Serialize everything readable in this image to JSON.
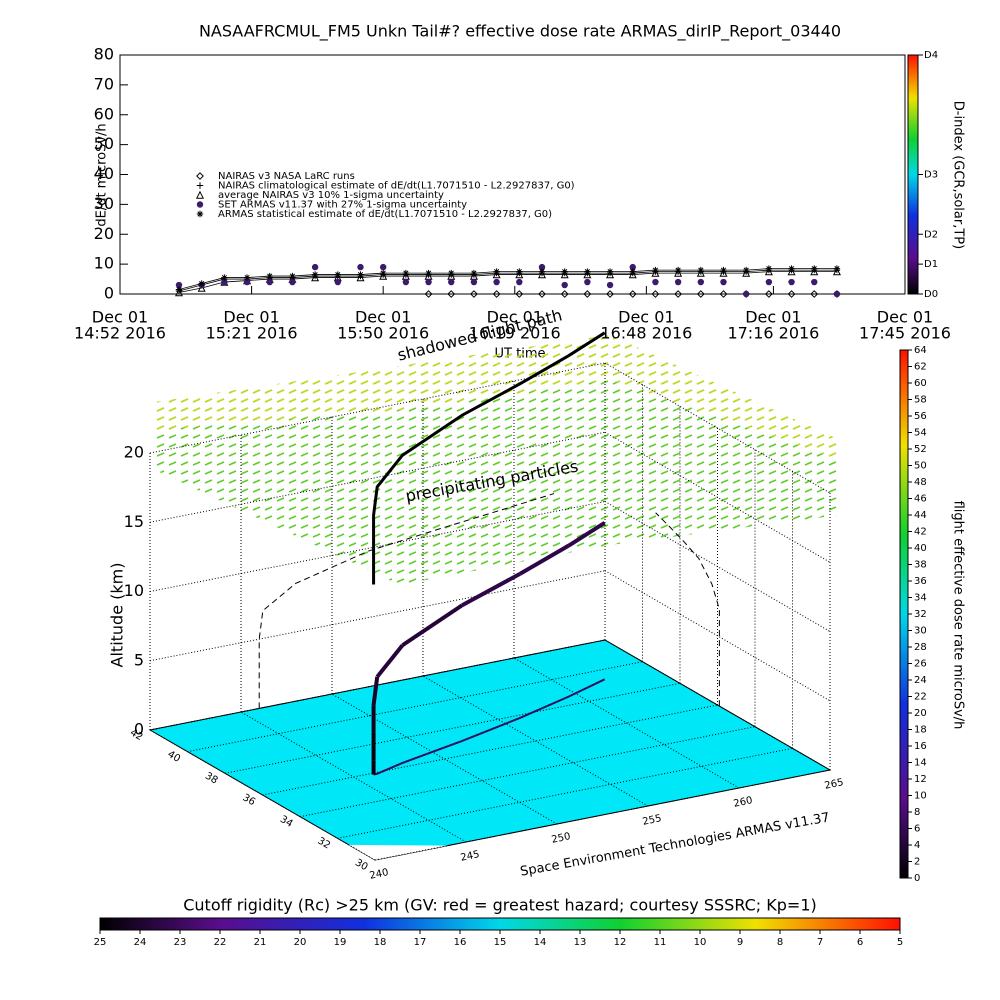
{
  "chart_data": [
    {
      "type": "timeseries",
      "title": "NASAAFRCMUL_FM5 Unkn Tail#? effective dose rate ARMAS_dirIP_Report_03440",
      "ylabel": "dE/dt microSv/h",
      "xlabel": "UT time",
      "xlim": [
        "2016-12-01T14:52",
        "2016-12-01T17:45"
      ],
      "xticks": [
        {
          "value": "2016-12-01T14:52",
          "label": [
            "Dec 01",
            "14:52 2016"
          ]
        },
        {
          "value": "2016-12-01T15:21",
          "label": [
            "Dec 01",
            "15:21 2016"
          ]
        },
        {
          "value": "2016-12-01T15:50",
          "label": [
            "Dec 01",
            "15:50 2016"
          ]
        },
        {
          "value": "2016-12-01T16:19",
          "label": [
            "Dec 01",
            "16:19 2016"
          ]
        },
        {
          "value": "2016-12-01T16:48",
          "label": [
            "Dec 01",
            "16:48 2016"
          ]
        },
        {
          "value": "2016-12-01T17:16",
          "label": [
            "Dec 01",
            "17:16 2016"
          ]
        },
        {
          "value": "2016-12-01T17:45",
          "label": [
            "Dec 01",
            "17:45 2016"
          ]
        }
      ],
      "ylim": [
        0,
        80
      ],
      "yticks": [
        0,
        10,
        20,
        30,
        40,
        50,
        60,
        70,
        80
      ],
      "x": [
        "2016-12-01T15:05",
        "2016-12-01T15:10",
        "2016-12-01T15:15",
        "2016-12-01T15:20",
        "2016-12-01T15:25",
        "2016-12-01T15:30",
        "2016-12-01T15:35",
        "2016-12-01T15:40",
        "2016-12-01T15:45",
        "2016-12-01T15:50",
        "2016-12-01T15:55",
        "2016-12-01T16:00",
        "2016-12-01T16:05",
        "2016-12-01T16:10",
        "2016-12-01T16:15",
        "2016-12-01T16:20",
        "2016-12-01T16:25",
        "2016-12-01T16:30",
        "2016-12-01T16:35",
        "2016-12-01T16:40",
        "2016-12-01T16:45",
        "2016-12-01T16:50",
        "2016-12-01T16:55",
        "2016-12-01T17:00",
        "2016-12-01T17:05",
        "2016-12-01T17:10",
        "2016-12-01T17:15",
        "2016-12-01T17:20",
        "2016-12-01T17:25",
        "2016-12-01T17:30"
      ],
      "series": [
        {
          "name": "NAIRAS v3 NASA LaRC runs",
          "marker": "diamond",
          "color": "#000000",
          "values": [
            null,
            null,
            null,
            null,
            null,
            null,
            null,
            null,
            null,
            null,
            null,
            0,
            0,
            0,
            0,
            0,
            0,
            0,
            0,
            0,
            0,
            0,
            0,
            0,
            0,
            0,
            0,
            0,
            0,
            0
          ]
        },
        {
          "name": "NAIRAS climatological estimate of dE/dt(L1.7071510 - L2.2927837, G0)",
          "marker": "plus",
          "color": "#000000",
          "values": [
            1,
            3,
            5,
            5,
            5.5,
            5.5,
            6,
            6,
            6,
            6.5,
            6.5,
            6.5,
            6.5,
            6.5,
            7,
            7,
            7,
            7,
            7,
            7,
            7,
            7.5,
            7.5,
            7.5,
            7.5,
            7.5,
            8,
            8,
            8,
            8
          ]
        },
        {
          "name": "average NAIRAS v3 10% 1-sigma uncertainty",
          "marker": "triangle",
          "color": "#000000",
          "values": [
            0.5,
            2,
            4,
            4.5,
            5,
            5,
            5.5,
            5.5,
            5.5,
            6,
            6,
            6,
            6,
            6,
            6.5,
            6.5,
            6.5,
            6.5,
            6.5,
            6.5,
            6.5,
            7,
            7,
            7,
            7,
            7,
            7.5,
            7.5,
            7.5,
            7.5
          ]
        },
        {
          "name": "SET ARMAS v11.37 with 27% 1-sigma uncertainty",
          "marker": "circle",
          "color": "#3c1a6e",
          "values": [
            3,
            3,
            4,
            4,
            4,
            4,
            9,
            4,
            9,
            9,
            4,
            4,
            4,
            4,
            4,
            4,
            9,
            3,
            4,
            3,
            9,
            4,
            4,
            4,
            4,
            0,
            4,
            4,
            4,
            0
          ]
        },
        {
          "name": "ARMAS statistical estimate of dE/dt(L1.7071510 - L2.2927837, G0)",
          "marker": "star",
          "color": "#000000",
          "values": [
            1.5,
            3.5,
            5.5,
            5.5,
            6,
            6,
            6.5,
            6.5,
            6.5,
            7,
            7,
            7,
            7,
            7,
            7.5,
            7.5,
            7.5,
            7.5,
            7.5,
            7.5,
            7.5,
            8,
            8,
            8,
            8,
            8,
            8.5,
            8.5,
            8.5,
            8.5
          ]
        }
      ],
      "colorbar": {
        "label": "D-index (GCR,solar,TP)",
        "ticks": [
          {
            "value": 0,
            "label": "D0"
          },
          {
            "value": 10,
            "label": "D1"
          },
          {
            "value": 20,
            "label": "D2"
          },
          {
            "value": 40,
            "label": "D3"
          },
          {
            "value": 80,
            "label": "D4"
          }
        ]
      }
    },
    {
      "type": "flight3d",
      "zlabel": "Altitude (km)",
      "credit": "Space Environment Technologies ARMAS v11.37",
      "annotations": [
        "shadowed flight path",
        "precipitating particles"
      ],
      "latlim": [
        30,
        42
      ],
      "latticks": [
        30,
        32,
        34,
        36,
        38,
        40,
        42
      ],
      "lonlim": [
        240,
        265
      ],
      "lonticks": [
        240,
        245,
        250,
        255,
        260,
        265
      ],
      "zlim": [
        0,
        20
      ],
      "zticks": [
        0,
        5,
        10,
        15,
        20
      ],
      "lat": [
        35.9,
        35.9,
        35.9,
        35.9,
        35.9,
        36.3,
        37.0,
        37.8,
        38.6,
        39.3
      ],
      "lon": [
        246.0,
        246.0,
        246.0,
        246.0,
        246.2,
        248.0,
        252.0,
        256.0,
        259.5,
        262.2
      ],
      "alt": [
        0,
        1,
        3,
        5,
        7,
        8.5,
        9.8,
        10.4,
        10.9,
        11.3
      ],
      "dose": [
        1,
        1,
        2,
        3,
        4,
        4,
        5,
        5,
        5,
        5
      ],
      "dose_colorbar": {
        "label": "flight effective dose rate microSv/h",
        "lim": [
          0,
          64
        ],
        "ticks": [
          0,
          2,
          4,
          6,
          8,
          10,
          12,
          14,
          16,
          18,
          20,
          22,
          24,
          26,
          28,
          30,
          32,
          34,
          36,
          38,
          40,
          42,
          44,
          46,
          48,
          50,
          52,
          54,
          56,
          58,
          60,
          62,
          64
        ]
      },
      "rc_colorbar": {
        "label": "Cutoff rigidity (Rc) >25 km (GV: red = greatest hazard; courtesy SSSRC; Kp=1)",
        "lim": [
          25,
          5
        ],
        "ticks": [
          25,
          24,
          23,
          22,
          21,
          20,
          19,
          18,
          17,
          16,
          15,
          14,
          13,
          12,
          11,
          10,
          9,
          8,
          7,
          6,
          5
        ]
      }
    }
  ]
}
